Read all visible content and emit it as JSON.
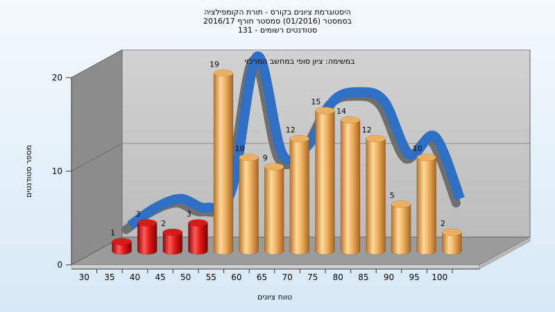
{
  "chart_data": {
    "type": "bar",
    "title_lines": [
      "היסטוגרמת ציונים בקורס - תורת הקומפילציה",
      "בסמסטר  (01/2016)  סמסטר חורף 2016/17",
      "131 - סטודנטים רשומים"
    ],
    "subtitle": "במשימה: ציון סופי במחשב המרכזי",
    "xlabel": "טווח ציונים",
    "ylabel": "מספר סטודנטים",
    "ylim": [
      0,
      20
    ],
    "yticks": [
      "0",
      "10",
      "20"
    ],
    "x_ticks": [
      "30",
      "35",
      "40",
      "45",
      "50",
      "55",
      "60",
      "65",
      "70",
      "75",
      "80",
      "85",
      "90",
      "95",
      "100"
    ],
    "bars": [
      {
        "x": "35",
        "value": 1,
        "label": "1",
        "color": "red"
      },
      {
        "x": "40",
        "value": 3,
        "label": "3",
        "color": "red"
      },
      {
        "x": "45",
        "value": 2,
        "label": "2",
        "color": "red"
      },
      {
        "x": "50",
        "value": 3,
        "label": "3",
        "color": "red"
      },
      {
        "x": "60",
        "value": 19,
        "label": "19",
        "color": "orange"
      },
      {
        "x": "65",
        "value": 10,
        "label": "10",
        "color": "orange"
      },
      {
        "x": "70",
        "value": 9,
        "label": "9",
        "color": "orange"
      },
      {
        "x": "75",
        "value": 12,
        "label": "12",
        "color": "orange"
      },
      {
        "x": "80",
        "value": 15,
        "label": "15",
        "color": "orange"
      },
      {
        "x": "85",
        "value": 14,
        "label": "14",
        "color": "orange"
      },
      {
        "x": "90",
        "value": 12,
        "label": "12",
        "color": "orange"
      },
      {
        "x": "95",
        "value": 5,
        "label": "5",
        "color": "orange"
      },
      {
        "x": "100",
        "value": 10,
        "label": "10",
        "color": "orange"
      },
      {
        "x": "105",
        "value": 2,
        "label": "2",
        "color": "orange"
      }
    ],
    "curve": {
      "type": "smoothed trend ribbon",
      "color": "#2f6fc4",
      "values": [
        1,
        3,
        4,
        3,
        5,
        20,
        9,
        10,
        15,
        16,
        15,
        9,
        11,
        4
      ]
    },
    "grid": true,
    "colors": {
      "red": "#e01a1a",
      "orange": "#e7a650",
      "plot_back": "#c4c4c4",
      "floor": "#9a9a9a"
    }
  }
}
